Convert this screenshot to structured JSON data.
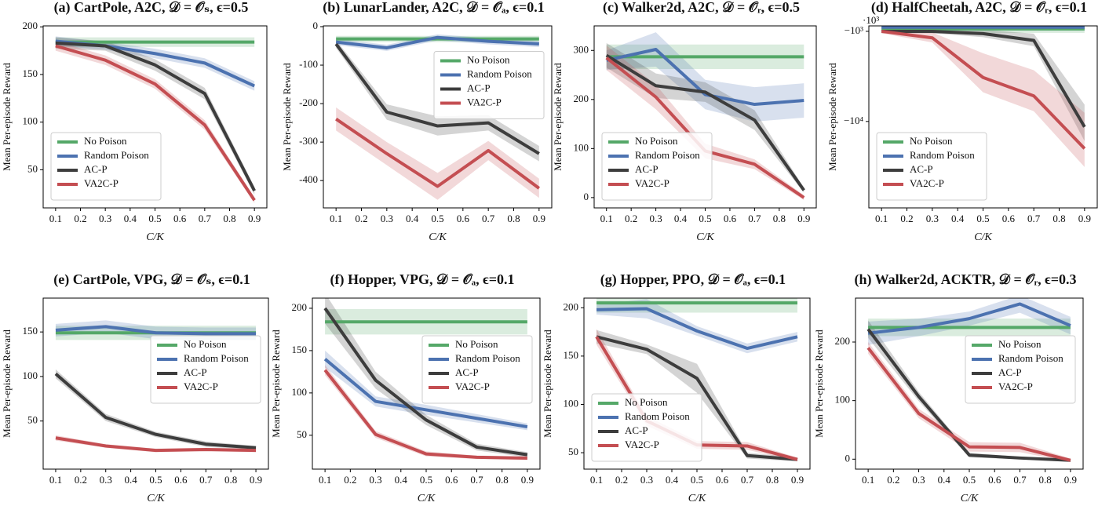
{
  "chart_data": [
    {
      "type": "line",
      "title": "(a) CartPole, A2C, 𝒟 = 𝒪ₛ, ϵ=0.5",
      "xlabel": "C/K",
      "ylabel": "Mean Per-episode Reward",
      "x": [
        0.1,
        0.3,
        0.5,
        0.7,
        0.9
      ],
      "xlim": [
        0.05,
        0.95
      ],
      "xticks": [
        0.1,
        0.2,
        0.3,
        0.4,
        0.5,
        0.6,
        0.7,
        0.8,
        0.9
      ],
      "ylim": [
        10,
        201
      ],
      "yticks": [
        50,
        100,
        150,
        200
      ],
      "legend": "lower left",
      "series": [
        {
          "name": "No Poison",
          "color": "#55a868",
          "values": [
            184,
            184,
            184,
            184,
            184
          ],
          "errors": [
            5,
            5,
            5,
            5,
            5
          ]
        },
        {
          "name": "Random Poison",
          "color": "#4c72b0",
          "values": [
            185,
            180,
            172,
            162,
            138
          ],
          "errors": [
            5,
            4,
            5,
            5,
            5
          ]
        },
        {
          "name": "AC-P",
          "color": "#3d3d3d",
          "values": [
            183,
            180,
            160,
            130,
            28
          ],
          "errors": [
            6,
            5,
            6,
            6,
            4
          ]
        },
        {
          "name": "VA2C-P",
          "color": "#c44e52",
          "values": [
            180,
            165,
            140,
            97,
            18
          ],
          "errors": [
            5,
            5,
            5,
            5,
            3
          ]
        }
      ]
    },
    {
      "type": "line",
      "title": "(b) LunarLander, A2C, 𝒟 = 𝒪ₐ, ϵ=0.1",
      "xlabel": "C/K",
      "ylabel": "Mean Per-episode Reward",
      "x": [
        0.1,
        0.3,
        0.5,
        0.7,
        0.9
      ],
      "xlim": [
        0.05,
        0.95
      ],
      "xticks": [
        0.1,
        0.2,
        0.3,
        0.4,
        0.5,
        0.6,
        0.7,
        0.8,
        0.9
      ],
      "ylim": [
        -471,
        2
      ],
      "yticks": [
        -400,
        -300,
        -200,
        -100,
        0
      ],
      "legend": "upper right",
      "series": [
        {
          "name": "No Poison",
          "color": "#55a868",
          "values": [
            -32,
            -32,
            -32,
            -32,
            -32
          ],
          "errors": [
            8,
            8,
            8,
            8,
            8
          ]
        },
        {
          "name": "Random Poison",
          "color": "#4c72b0",
          "values": [
            -40,
            -55,
            -28,
            -38,
            -45
          ],
          "errors": [
            8,
            8,
            8,
            8,
            8
          ]
        },
        {
          "name": "AC-P",
          "color": "#3d3d3d",
          "values": [
            -45,
            -222,
            -258,
            -250,
            -330
          ],
          "errors": [
            10,
            20,
            25,
            20,
            20
          ]
        },
        {
          "name": "VA2C-P",
          "color": "#c44e52",
          "values": [
            -240,
            -330,
            -415,
            -322,
            -420
          ],
          "errors": [
            30,
            30,
            35,
            25,
            25
          ]
        }
      ]
    },
    {
      "type": "line",
      "title": "(c) Walker2d, A2C, 𝒟 = 𝒪ᵣ, ϵ=0.5",
      "xlabel": "C/K",
      "ylabel": "Mean Per-episode Reward",
      "x": [
        0.1,
        0.3,
        0.5,
        0.7,
        0.9
      ],
      "xlim": [
        0.05,
        0.95
      ],
      "xticks": [
        0.1,
        0.2,
        0.3,
        0.4,
        0.5,
        0.6,
        0.7,
        0.8,
        0.9
      ],
      "ylim": [
        -21,
        350
      ],
      "yticks": [
        0,
        100,
        200,
        300
      ],
      "legend": "lower left",
      "series": [
        {
          "name": "No Poison",
          "color": "#55a868",
          "values": [
            287,
            287,
            287,
            287,
            287
          ],
          "errors": [
            25,
            25,
            25,
            25,
            25
          ]
        },
        {
          "name": "Random Poison",
          "color": "#4c72b0",
          "values": [
            280,
            302,
            210,
            190,
            198
          ],
          "errors": [
            20,
            35,
            30,
            35,
            35
          ]
        },
        {
          "name": "AC-P",
          "color": "#3d3d3d",
          "values": [
            290,
            228,
            215,
            158,
            15
          ],
          "errors": [
            25,
            25,
            20,
            20,
            5
          ]
        },
        {
          "name": "VA2C-P",
          "color": "#c44e52",
          "values": [
            285,
            205,
            95,
            68,
            0
          ],
          "errors": [
            25,
            25,
            15,
            10,
            5
          ]
        }
      ]
    },
    {
      "type": "line",
      "title": "(d) HalfCheetah, A2C, 𝒟 = 𝒪ᵣ, ϵ=0.1",
      "xlabel": "C/K",
      "ylabel": "Mean Per-episode Reward",
      "x": [
        0.1,
        0.3,
        0.5,
        0.7,
        0.9
      ],
      "xlim": [
        0.05,
        0.95
      ],
      "xticks": [
        0.1,
        0.2,
        0.3,
        0.4,
        0.5,
        0.6,
        0.7,
        0.8,
        0.9
      ],
      "yscale": "log",
      "y_offset_text": "·10³",
      "ylim": [
        -91000,
        -870
      ],
      "yticks": [
        {
          "value": -1000,
          "label": "−10³"
        },
        {
          "value": -10000,
          "label": "−10⁴"
        }
      ],
      "legend": "lower left",
      "series": [
        {
          "name": "No Poison",
          "color": "#55a868",
          "values": [
            -940,
            -940,
            -940,
            -940,
            -940
          ],
          "errors": [
            100,
            100,
            100,
            100,
            100
          ]
        },
        {
          "name": "Random Poison",
          "color": "#4c72b0",
          "values": [
            -900,
            -900,
            -900,
            -900,
            -900
          ],
          "errors": [
            80,
            80,
            80,
            80,
            80
          ]
        },
        {
          "name": "AC-P",
          "color": "#3d3d3d",
          "values": [
            -1000,
            -1000,
            -1060,
            -1260,
            -11500
          ],
          "errors": [
            50,
            50,
            100,
            200,
            5000
          ]
        },
        {
          "name": "VA2C-P",
          "color": "#c44e52",
          "values": [
            -1000,
            -1180,
            -3250,
            -5200,
            -20000
          ],
          "errors": [
            50,
            150,
            1500,
            2500,
            12000
          ]
        }
      ]
    },
    {
      "type": "line",
      "title": "(e) CartPole, VPG, 𝒟 = 𝒪ₛ, ϵ=0.1",
      "xlabel": "C/K",
      "ylabel": "Mean Per-episode Reward",
      "x": [
        0.1,
        0.3,
        0.5,
        0.7,
        0.9
      ],
      "xlim": [
        0.05,
        0.95
      ],
      "xticks": [
        0.1,
        0.2,
        0.3,
        0.4,
        0.5,
        0.6,
        0.7,
        0.8,
        0.9
      ],
      "ylim": [
        -4,
        188
      ],
      "yticks": [
        50,
        100,
        150
      ],
      "legend": "center right",
      "series": [
        {
          "name": "No Poison",
          "color": "#55a868",
          "values": [
            149,
            149,
            149,
            149,
            149
          ],
          "errors": [
            8,
            8,
            8,
            8,
            8
          ]
        },
        {
          "name": "Random Poison",
          "color": "#4c72b0",
          "values": [
            152,
            156,
            149,
            148,
            148
          ],
          "errors": [
            7,
            7,
            7,
            7,
            7
          ]
        },
        {
          "name": "AC-P",
          "color": "#3d3d3d",
          "values": [
            103,
            54,
            35,
            24,
            20
          ],
          "errors": [
            5,
            4,
            3,
            3,
            2
          ]
        },
        {
          "name": "VA2C-P",
          "color": "#c44e52",
          "values": [
            31,
            22,
            17,
            18,
            17
          ],
          "errors": [
            3,
            2,
            2,
            2,
            2
          ]
        }
      ]
    },
    {
      "type": "line",
      "title": "(f) Hopper, VPG, 𝒟 = 𝒪ₐ, ϵ=0.1",
      "xlabel": "C/K",
      "ylabel": "Mean Per-episode Reward",
      "x": [
        0.1,
        0.3,
        0.5,
        0.7,
        0.9
      ],
      "xlim": [
        0.05,
        0.95
      ],
      "xticks": [
        0.1,
        0.2,
        0.3,
        0.4,
        0.5,
        0.6,
        0.7,
        0.8,
        0.9
      ],
      "ylim": [
        10,
        212
      ],
      "yticks": [
        50,
        100,
        150,
        200
      ],
      "legend": "center right",
      "series": [
        {
          "name": "No Poison",
          "color": "#55a868",
          "values": [
            184,
            184,
            184,
            184,
            184
          ],
          "errors": [
            15,
            15,
            15,
            15,
            15
          ]
        },
        {
          "name": "Random Poison",
          "color": "#4c72b0",
          "values": [
            140,
            90,
            80,
            70,
            60
          ],
          "errors": [
            10,
            6,
            6,
            5,
            4
          ]
        },
        {
          "name": "AC-P",
          "color": "#3d3d3d",
          "values": [
            200,
            115,
            68,
            36,
            27
          ],
          "errors": [
            18,
            10,
            6,
            4,
            3
          ]
        },
        {
          "name": "VA2C-P",
          "color": "#c44e52",
          "values": [
            127,
            51,
            28,
            24,
            23
          ],
          "errors": [
            6,
            4,
            3,
            2,
            2
          ]
        }
      ]
    },
    {
      "type": "line",
      "title": "(g) Hopper, PPO, 𝒟 = 𝒪ₐ, ϵ=0.1",
      "xlabel": "C/K",
      "ylabel": "Mean Per-episode Reward",
      "x": [
        0.1,
        0.3,
        0.5,
        0.7,
        0.9
      ],
      "xlim": [
        0.05,
        0.95
      ],
      "xticks": [
        0.1,
        0.2,
        0.3,
        0.4,
        0.5,
        0.6,
        0.7,
        0.8,
        0.9
      ],
      "ylim": [
        33,
        210
      ],
      "yticks": [
        50,
        100,
        150,
        200
      ],
      "legend": "lower left",
      "series": [
        {
          "name": "No Poison",
          "color": "#55a868",
          "values": [
            205,
            205,
            205,
            205,
            205
          ],
          "errors": [
            10,
            10,
            10,
            10,
            10
          ]
        },
        {
          "name": "Random Poison",
          "color": "#4c72b0",
          "values": [
            198,
            199,
            176,
            158,
            170
          ],
          "errors": [
            5,
            10,
            5,
            5,
            5
          ]
        },
        {
          "name": "AC-P",
          "color": "#3d3d3d",
          "values": [
            170,
            157,
            127,
            47,
            43
          ],
          "errors": [
            7,
            5,
            15,
            3,
            2
          ]
        },
        {
          "name": "VA2C-P",
          "color": "#c44e52",
          "values": [
            170,
            83,
            58,
            57,
            43
          ],
          "errors": [
            8,
            5,
            4,
            4,
            2
          ]
        }
      ]
    },
    {
      "type": "line",
      "title": "(h) Walker2d, ACKTR, 𝒟 = 𝒪ᵣ, ϵ=0.3",
      "xlabel": "C/K",
      "ylabel": "Mean Per-episode Reward",
      "x": [
        0.1,
        0.3,
        0.5,
        0.7,
        0.9
      ],
      "xlim": [
        0.05,
        0.95
      ],
      "xticks": [
        0.1,
        0.2,
        0.3,
        0.4,
        0.5,
        0.6,
        0.7,
        0.8,
        0.9
      ],
      "ylim": [
        -17,
        275
      ],
      "yticks": [
        0,
        100,
        200
      ],
      "legend": "center right",
      "series": [
        {
          "name": "No Poison",
          "color": "#55a868",
          "values": [
            225,
            225,
            225,
            225,
            225
          ],
          "errors": [
            15,
            15,
            15,
            15,
            15
          ]
        },
        {
          "name": "Random Poison",
          "color": "#4c72b0",
          "values": [
            215,
            225,
            240,
            265,
            228
          ],
          "errors": [
            20,
            15,
            12,
            15,
            15
          ]
        },
        {
          "name": "AC-P",
          "color": "#3d3d3d",
          "values": [
            222,
            107,
            7,
            2,
            -2
          ],
          "errors": [
            15,
            8,
            4,
            2,
            2
          ]
        },
        {
          "name": "VA2C-P",
          "color": "#c44e52",
          "values": [
            190,
            78,
            21,
            20,
            -2
          ],
          "errors": [
            10,
            8,
            8,
            8,
            3
          ]
        }
      ]
    }
  ]
}
